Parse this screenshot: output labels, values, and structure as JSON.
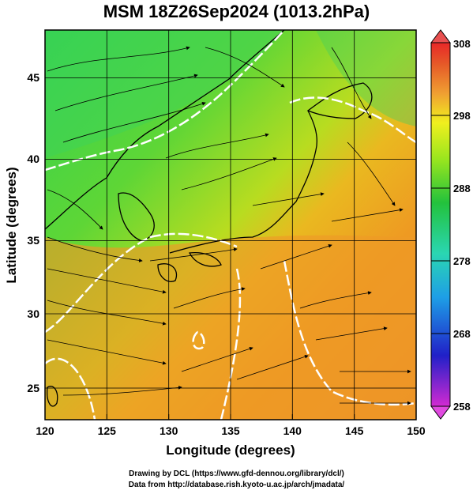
{
  "title": "MSM 18Z26Sep2024 (1013.2hPa)",
  "x_axis": {
    "label": "Longitude (degrees)",
    "ticks": [
      "120",
      "125",
      "130",
      "135",
      "140",
      "145",
      "150"
    ],
    "range": [
      120,
      150
    ]
  },
  "y_axis": {
    "label": "Latitude  (degrees)",
    "ticks": [
      "25",
      "30",
      "35",
      "40",
      "45"
    ],
    "range": [
      23,
      48
    ]
  },
  "colorbar": {
    "ticks": [
      "308",
      "298",
      "288",
      "278",
      "268",
      "258"
    ],
    "range": [
      258,
      308
    ],
    "colors": [
      "#d22ad2",
      "#2020c8",
      "#1e9fe6",
      "#2ad6b2",
      "#23c23c",
      "#9ae61e",
      "#f0f01e",
      "#f0a032",
      "#e65a28",
      "#e82828"
    ]
  },
  "credit": {
    "line1": "Drawing by DCL (https://www.gfd-dennou.org/library/dcl/)",
    "line2": "Data from http://database.rish.kyoto-u.ac.jp/arch/jmadata/"
  }
}
